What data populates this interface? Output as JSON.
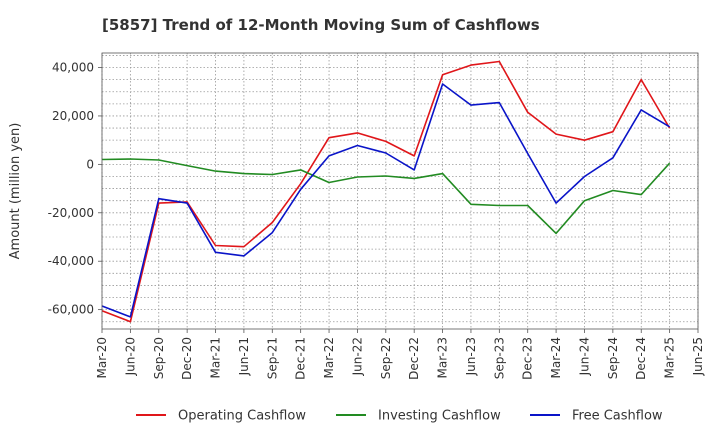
{
  "chart_data": {
    "type": "line",
    "title": "[5857]  Trend of 12-Month Moving Sum of Cashflows",
    "xlabel": "",
    "ylabel": "Amount (million yen)",
    "categories": [
      "Mar-20",
      "Jun-20",
      "Sep-20",
      "Dec-20",
      "Mar-21",
      "Jun-21",
      "Sep-21",
      "Dec-21",
      "Mar-22",
      "Jun-22",
      "Sep-22",
      "Dec-22",
      "Mar-23",
      "Jun-23",
      "Sep-23",
      "Dec-23",
      "Mar-24",
      "Jun-24",
      "Sep-24",
      "Dec-24",
      "Mar-25",
      "Jun-25"
    ],
    "ylim": [
      -68000,
      46000
    ],
    "yticks": [
      -60000,
      -40000,
      -20000,
      0,
      20000,
      40000
    ],
    "ytick_labels": [
      "-60,000",
      "-40,000",
      "-20,000",
      "0",
      "20,000",
      "40,000"
    ],
    "grid": true,
    "legend_position": "bottom",
    "series": [
      {
        "name": "Operating Cashflow",
        "color": "#e0161a",
        "values": [
          -60500,
          -65000,
          -16000,
          -15500,
          -33500,
          -34000,
          -24000,
          -8000,
          11000,
          13000,
          9500,
          3500,
          37000,
          41000,
          42500,
          21500,
          12500,
          10000,
          13500,
          35000,
          15000,
          null
        ]
      },
      {
        "name": "Investing Cashflow",
        "color": "#228b22",
        "values": [
          2000,
          2200,
          1800,
          -500,
          -2800,
          -3800,
          -4200,
          -2300,
          -7500,
          -5200,
          -4800,
          -5800,
          -3800,
          -16500,
          -17000,
          -17000,
          -28500,
          -15000,
          -10800,
          -12500,
          500,
          null
        ]
      },
      {
        "name": "Free Cashflow",
        "color": "#0a14c8",
        "values": [
          -58500,
          -63000,
          -14200,
          -16000,
          -36300,
          -37800,
          -28200,
          -10300,
          3500,
          7800,
          4700,
          -2300,
          33200,
          24500,
          25500,
          4500,
          -16000,
          -5000,
          2700,
          22500,
          15500,
          null
        ]
      }
    ]
  }
}
